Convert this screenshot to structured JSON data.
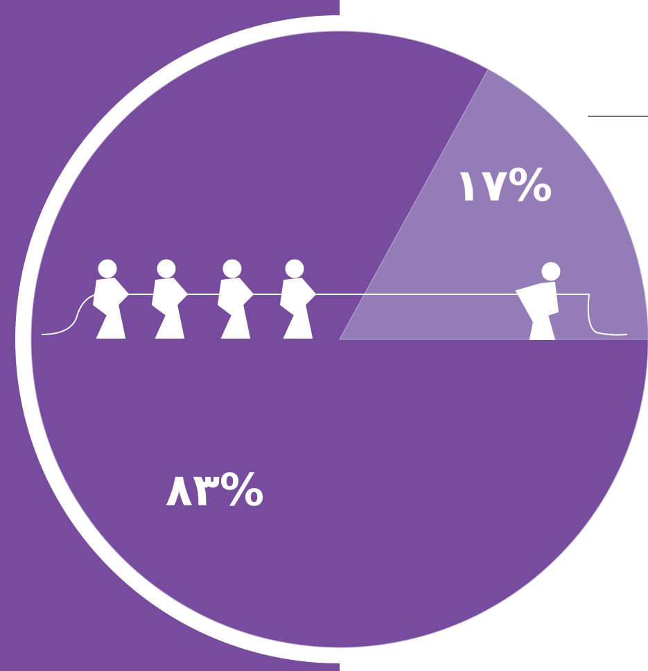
{
  "chart_data": {
    "type": "pie",
    "values": [
      83,
      17
    ],
    "value_labels": [
      "٨٣%",
      "١٧%"
    ],
    "colors": [
      "#774c9e",
      "#937cb8"
    ]
  }
}
